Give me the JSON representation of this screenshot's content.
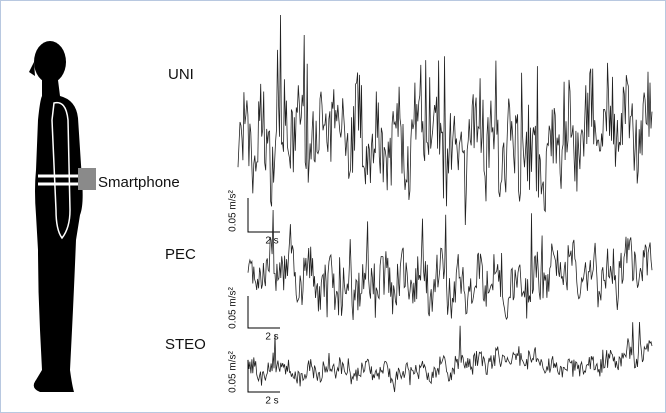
{
  "figure": {
    "sensor_label": "Smartphone",
    "panels": [
      {
        "label": "UNI",
        "amplitude_scale": "0.05 m/s²",
        "time_scale": "2 s"
      },
      {
        "label": "PEC",
        "amplitude_scale": "0.05 m/s²",
        "time_scale": "2 s"
      },
      {
        "label": "STEO",
        "amplitude_scale": "0.05 m/s²",
        "time_scale": "2 s"
      }
    ]
  }
}
